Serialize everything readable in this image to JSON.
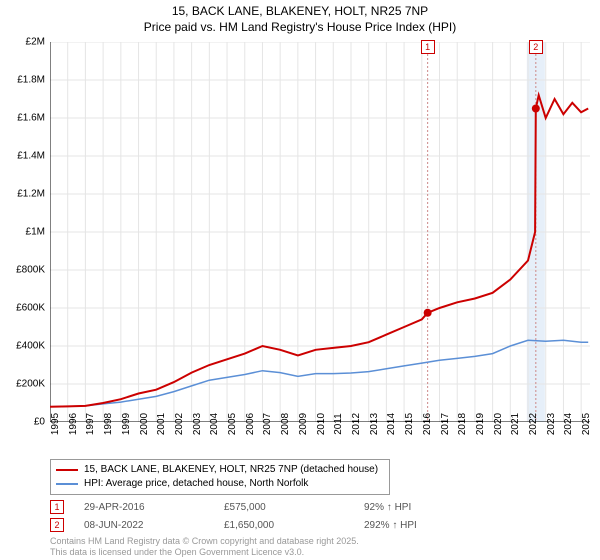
{
  "title_line1": "15, BACK LANE, BLAKENEY, HOLT, NR25 7NP",
  "title_line2": "Price paid vs. HM Land Registry's House Price Index (HPI)",
  "chart": {
    "type": "line",
    "background_color": "#ffffff",
    "grid_color": "#e5e5e5",
    "axis_color": "#000000",
    "xlim": [
      1995,
      2025.5
    ],
    "ylim": [
      0,
      2000000
    ],
    "ytick_step": 200000,
    "ytick_labels": [
      "£0",
      "£200K",
      "£400K",
      "£600K",
      "£800K",
      "£1M",
      "£1.2M",
      "£1.4M",
      "£1.6M",
      "£1.8M",
      "£2M"
    ],
    "xtick_step": 1,
    "xtick_labels": [
      "1995",
      "1996",
      "1997",
      "1998",
      "1999",
      "2000",
      "2001",
      "2002",
      "2003",
      "2004",
      "2005",
      "2006",
      "2007",
      "2008",
      "2009",
      "2010",
      "2011",
      "2012",
      "2013",
      "2014",
      "2015",
      "2016",
      "2017",
      "2018",
      "2019",
      "2020",
      "2021",
      "2022",
      "2023",
      "2024",
      "2025"
    ],
    "series": [
      {
        "name": "property",
        "label": "15, BACK LANE, BLAKENEY, HOLT, NR25 7NP (detached house)",
        "color": "#cc0000",
        "line_width": 2,
        "data": [
          [
            1995,
            80000
          ],
          [
            1996,
            82000
          ],
          [
            1997,
            85000
          ],
          [
            1998,
            100000
          ],
          [
            1999,
            120000
          ],
          [
            2000,
            150000
          ],
          [
            2001,
            170000
          ],
          [
            2002,
            210000
          ],
          [
            2003,
            260000
          ],
          [
            2004,
            300000
          ],
          [
            2005,
            330000
          ],
          [
            2006,
            360000
          ],
          [
            2007,
            400000
          ],
          [
            2008,
            380000
          ],
          [
            2009,
            350000
          ],
          [
            2010,
            380000
          ],
          [
            2011,
            390000
          ],
          [
            2012,
            400000
          ],
          [
            2013,
            420000
          ],
          [
            2014,
            460000
          ],
          [
            2015,
            500000
          ],
          [
            2016,
            540000
          ],
          [
            2016.33,
            575000
          ],
          [
            2017,
            600000
          ],
          [
            2018,
            630000
          ],
          [
            2019,
            650000
          ],
          [
            2020,
            680000
          ],
          [
            2021,
            750000
          ],
          [
            2022,
            850000
          ],
          [
            2022.4,
            1000000
          ],
          [
            2022.44,
            1650000
          ],
          [
            2022.6,
            1720000
          ],
          [
            2023,
            1600000
          ],
          [
            2023.5,
            1700000
          ],
          [
            2024,
            1620000
          ],
          [
            2024.5,
            1680000
          ],
          [
            2025,
            1630000
          ],
          [
            2025.4,
            1650000
          ]
        ]
      },
      {
        "name": "hpi",
        "label": "HPI: Average price, detached house, North Norfolk",
        "color": "#5b8fd6",
        "line_width": 1.5,
        "data": [
          [
            1995,
            80000
          ],
          [
            1996,
            82000
          ],
          [
            1997,
            85000
          ],
          [
            1998,
            95000
          ],
          [
            1999,
            105000
          ],
          [
            2000,
            120000
          ],
          [
            2001,
            135000
          ],
          [
            2002,
            160000
          ],
          [
            2003,
            190000
          ],
          [
            2004,
            220000
          ],
          [
            2005,
            235000
          ],
          [
            2006,
            250000
          ],
          [
            2007,
            270000
          ],
          [
            2008,
            260000
          ],
          [
            2009,
            240000
          ],
          [
            2010,
            255000
          ],
          [
            2011,
            255000
          ],
          [
            2012,
            258000
          ],
          [
            2013,
            265000
          ],
          [
            2014,
            280000
          ],
          [
            2015,
            295000
          ],
          [
            2016,
            310000
          ],
          [
            2017,
            325000
          ],
          [
            2018,
            335000
          ],
          [
            2019,
            345000
          ],
          [
            2020,
            360000
          ],
          [
            2021,
            400000
          ],
          [
            2022,
            430000
          ],
          [
            2023,
            425000
          ],
          [
            2024,
            430000
          ],
          [
            2025,
            420000
          ],
          [
            2025.4,
            420000
          ]
        ]
      }
    ],
    "markers": [
      {
        "id": "1",
        "x": 2016.33,
        "y": 575000,
        "date": "29-APR-2016",
        "price": "£575,000",
        "delta": "92% ↑ HPI",
        "line_color": "#cc8888",
        "band_color": "none"
      },
      {
        "id": "2",
        "x": 2022.44,
        "y": 1650000,
        "date": "08-JUN-2022",
        "price": "£1,650,000",
        "delta": "292% ↑ HPI",
        "line_color": "#cc8888",
        "band_color": "#d6e4f5"
      }
    ]
  },
  "legend": {
    "property": "15, BACK LANE, BLAKENEY, HOLT, NR25 7NP (detached house)",
    "hpi": "HPI: Average price, detached house, North Norfolk"
  },
  "attribution_line1": "Contains HM Land Registry data © Crown copyright and database right 2025.",
  "attribution_line2": "This data is licensed under the Open Government Licence v3.0."
}
